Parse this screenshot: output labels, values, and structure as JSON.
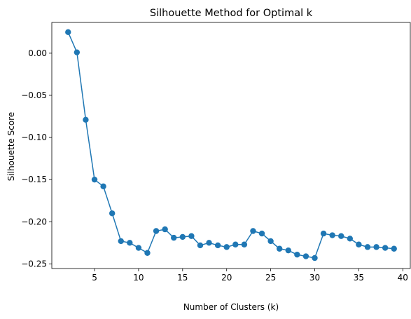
{
  "chart_data": {
    "type": "line",
    "title": "Silhouette Method for Optimal k",
    "xlabel": "Number of Clusters (k)",
    "ylabel": "Silhouette Score",
    "xlim": [
      0.15,
      40.85
    ],
    "ylim": [
      -0.2555,
      0.0365
    ],
    "xticks": [
      5,
      10,
      15,
      20,
      25,
      30,
      35,
      40
    ],
    "xtick_labels": [
      "5",
      "10",
      "15",
      "20",
      "25",
      "30",
      "35",
      "40"
    ],
    "yticks": [
      0.0,
      -0.05,
      -0.1,
      -0.15,
      -0.2,
      -0.25
    ],
    "ytick_labels": [
      "0.00",
      "−0.05",
      "−0.10",
      "−0.15",
      "−0.20",
      "−0.25"
    ],
    "grid": false,
    "marker": "circle",
    "color": "#1f77b4",
    "series": [
      {
        "x": [
          2,
          3,
          4,
          5,
          6,
          7,
          8,
          9,
          10,
          11,
          12,
          13,
          14,
          15,
          16,
          17,
          18,
          19,
          20,
          21,
          22,
          23,
          24,
          25,
          26,
          27,
          28,
          29,
          30,
          31,
          32,
          33,
          34,
          35,
          36,
          37,
          38,
          39
        ],
        "values": [
          0.025,
          0.001,
          -0.079,
          -0.15,
          -0.158,
          -0.19,
          -0.223,
          -0.225,
          -0.231,
          -0.237,
          -0.211,
          -0.209,
          -0.219,
          -0.218,
          -0.217,
          -0.228,
          -0.225,
          -0.228,
          -0.23,
          -0.227,
          -0.227,
          -0.211,
          -0.214,
          -0.223,
          -0.232,
          -0.234,
          -0.239,
          -0.241,
          -0.243,
          -0.214,
          -0.216,
          -0.217,
          -0.22,
          -0.227,
          -0.23,
          -0.23,
          -0.231,
          -0.232
        ]
      }
    ]
  }
}
